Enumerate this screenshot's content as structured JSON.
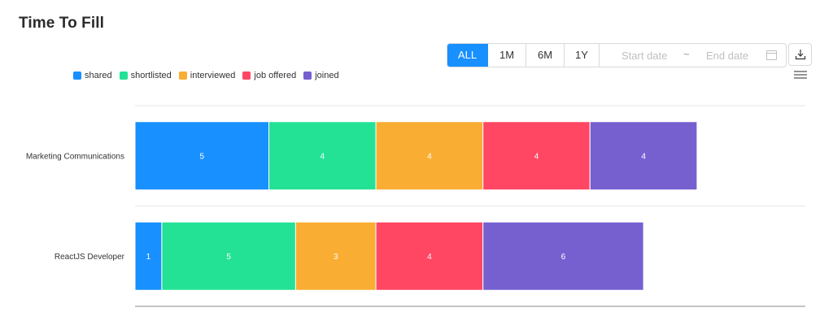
{
  "title": "Time To Fill",
  "toolbar": {
    "ranges": [
      {
        "label": "ALL",
        "active": true
      },
      {
        "label": "1M",
        "active": false
      },
      {
        "label": "6M",
        "active": false
      },
      {
        "label": "1Y",
        "active": false
      }
    ],
    "start_placeholder": "Start date",
    "separator": "~",
    "end_placeholder": "End date",
    "icons": [
      "calendar-icon",
      "download-icon",
      "menu-icon"
    ]
  },
  "colors": {
    "accent": "#1890ff",
    "shared": "#1890ff",
    "shortlisted": "#23e296",
    "interviewed": "#faad33",
    "job_offered": "#ff4663",
    "joined": "#7660d0"
  },
  "chart_data": {
    "type": "bar",
    "orientation": "horizontal",
    "stacked": true,
    "title": "Time To Fill",
    "categories": [
      "Marketing Communications",
      "ReactJS Developer"
    ],
    "series": [
      {
        "name": "shared",
        "color": "#1890ff",
        "values": [
          5,
          1
        ]
      },
      {
        "name": "shortlisted",
        "color": "#23e296",
        "values": [
          4,
          5
        ]
      },
      {
        "name": "interviewed",
        "color": "#faad33",
        "values": [
          4,
          3
        ]
      },
      {
        "name": "job offered",
        "color": "#ff4663",
        "values": [
          4,
          4
        ]
      },
      {
        "name": "joined",
        "color": "#7660d0",
        "values": [
          4,
          6
        ]
      }
    ],
    "xlim": [
      0,
      25
    ],
    "legend": "top-left",
    "grid": true,
    "data_labels": true
  }
}
